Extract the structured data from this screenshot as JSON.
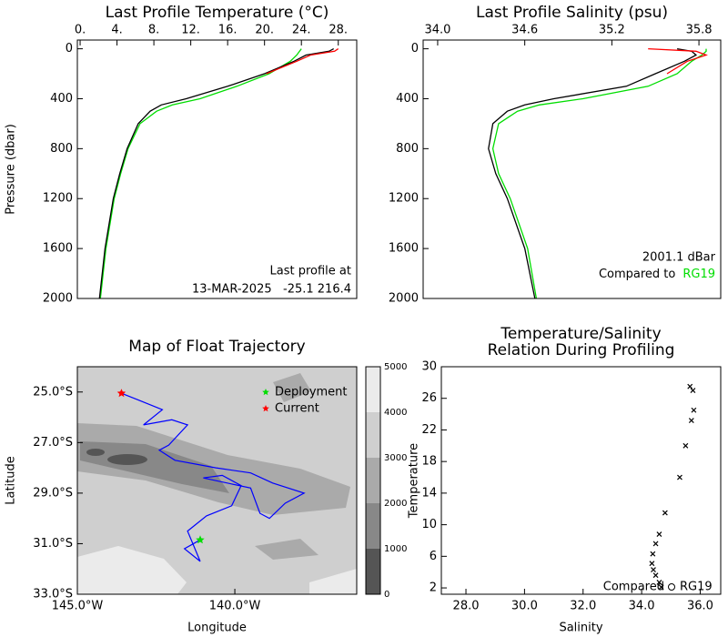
{
  "chart_data": [
    {
      "type": "profile",
      "title": "Last Profile Temperature (°C)",
      "y_label": "Pressure (dbar)",
      "xlim": [
        -0.3,
        30
      ],
      "xticks": [
        {
          "value": 0,
          "label": "0."
        },
        {
          "value": 4,
          "label": "4."
        },
        {
          "value": 8,
          "label": "8."
        },
        {
          "value": 12,
          "label": "12."
        },
        {
          "value": 16,
          "label": "16."
        },
        {
          "value": 20,
          "label": "20."
        },
        {
          "value": 24,
          "label": "24."
        },
        {
          "value": 28,
          "label": "28."
        }
      ],
      "ylim": [
        -70,
        2000
      ],
      "y_inverted": true,
      "yticks": [
        0,
        400,
        800,
        1200,
        1600,
        2000
      ],
      "y": [
        0,
        20,
        50,
        100,
        200,
        300,
        400,
        450,
        500,
        600,
        800,
        1000,
        1200,
        1600,
        2000
      ],
      "series": [
        {
          "color": "#00dd00",
          "values": [
            24.0,
            23.8,
            23.5,
            22.8,
            20.5,
            17.0,
            13.0,
            10.0,
            8.3,
            6.5,
            5.2,
            4.4,
            3.7,
            2.8,
            2.2
          ]
        },
        {
          "color": "#000000",
          "values": [
            27.5,
            27.0,
            24.5,
            23.2,
            20.0,
            16.0,
            11.5,
            8.8,
            7.6,
            6.3,
            5.1,
            4.3,
            3.6,
            2.7,
            2.1
          ]
        },
        {
          "color": "#ff0000",
          "values": [
            28.0,
            27.6,
            25.0,
            23.5,
            20.2,
            null,
            null,
            null,
            null,
            null,
            null,
            null,
            null,
            null,
            null
          ]
        }
      ],
      "annotations": [
        "Last profile at",
        "13-MAR-2025   -25.1 216.4"
      ]
    },
    {
      "type": "profile",
      "title": "Last Profile Salinity (psu)",
      "xlim": [
        33.9,
        35.95
      ],
      "xticks": [
        {
          "value": 34,
          "label": "34.0"
        },
        34.6,
        35.2,
        35.8
      ],
      "ylim": [
        -70,
        2000
      ],
      "y_inverted": true,
      "yticks": [
        0,
        400,
        800,
        1200,
        1600,
        2000
      ],
      "y": [
        0,
        20,
        50,
        100,
        200,
        300,
        400,
        450,
        500,
        600,
        800,
        1000,
        1200,
        1600,
        2000
      ],
      "series": [
        {
          "color": "#00dd00",
          "values": [
            35.85,
            35.85,
            35.82,
            35.75,
            35.65,
            35.45,
            35.0,
            34.7,
            34.55,
            34.42,
            34.38,
            34.42,
            34.5,
            34.62,
            34.68
          ]
        },
        {
          "color": "#000000",
          "values": [
            35.65,
            35.75,
            35.78,
            35.7,
            35.5,
            35.3,
            34.8,
            34.6,
            34.48,
            34.38,
            34.35,
            34.4,
            34.48,
            34.6,
            34.67
          ]
        },
        {
          "color": "#ff0000",
          "values": [
            35.45,
            35.78,
            35.85,
            35.72,
            35.58,
            null,
            null,
            null,
            null,
            null,
            null,
            null,
            null,
            null,
            null
          ]
        }
      ],
      "annotations": [
        "2001.1 dBar"
      ],
      "comparison": {
        "text": "Compared to",
        "label": "RG19",
        "color": "#00dd00"
      }
    },
    {
      "type": "map",
      "title": "Map of Float Trajectory",
      "x_label": "Longitude",
      "y_label": "Latitude",
      "xlim": [
        -145,
        -136.13
      ],
      "xticks": [
        {
          "value": -145,
          "label": "145.0°W"
        },
        {
          "value": -140,
          "label": "140.0°W"
        }
      ],
      "ylim": [
        -33,
        -24
      ],
      "yticks": [
        {
          "value": -25,
          "label": "25.0°S"
        },
        {
          "value": -27,
          "label": "27.0°S"
        },
        {
          "value": -29,
          "label": "29.0°S"
        },
        {
          "value": -31,
          "label": "31.0°S"
        },
        {
          "value": -33,
          "label": "33.0°S"
        }
      ],
      "series": [
        {
          "color": "#0000ff",
          "x": [
            -141.1,
            -141.6,
            -141.1,
            -141.5,
            -140.9,
            -140.1,
            -139.8,
            -140.4,
            -141.0,
            -139.5,
            -139.2,
            -138.9,
            -138.4,
            -137.8,
            -138.8,
            -139.5,
            -140.6,
            -141.9,
            -142.4,
            -142.1,
            -141.5,
            -142.0,
            -142.9,
            -142.3,
            -143.1,
            -143.6
          ],
          "values": [
            -30.85,
            -31.2,
            -31.7,
            -30.5,
            -29.9,
            -29.5,
            -28.7,
            -28.3,
            -28.4,
            -28.8,
            -29.8,
            -30.0,
            -29.4,
            -29.0,
            -28.6,
            -28.2,
            -28.0,
            -27.7,
            -27.3,
            -27.1,
            -26.3,
            -26.1,
            -26.3,
            -25.7,
            -25.3,
            -25.05
          ]
        }
      ],
      "markers": [
        {
          "name": "Deployment",
          "color": "#00dd00",
          "x": -141.1,
          "y": -30.85
        },
        {
          "name": "Current",
          "color": "#ff0000",
          "x": -143.6,
          "y": -25.05
        }
      ],
      "colorbar": {
        "ticks": [
          0,
          1000,
          2000,
          3000,
          4000,
          5000
        ],
        "colors": [
          "#555555",
          "#888888",
          "#aaaaaa",
          "#cfcfcf",
          "#ebebeb"
        ]
      }
    },
    {
      "type": "scatter",
      "title": [
        "Temperature/Salinity",
        "Relation During Profiling"
      ],
      "x_label": "Salinity",
      "y_label": "Temperature",
      "xlim": [
        27.16,
        36.7
      ],
      "xticks": [
        {
          "value": 28,
          "label": "28.0"
        },
        {
          "value": 30,
          "label": "30.0"
        },
        {
          "value": 32,
          "label": "32.0"
        },
        {
          "value": 34,
          "label": "34.0"
        },
        {
          "value": 36,
          "label": "36.0"
        }
      ],
      "ylim": [
        1.2,
        30
      ],
      "yticks": [
        2,
        6,
        10,
        14,
        18,
        22,
        26,
        30
      ],
      "series": [
        {
          "color": "#000000",
          "x": [
            35.65,
            35.75,
            35.78,
            35.7,
            35.5,
            35.3,
            34.8,
            34.6,
            34.48,
            34.38,
            34.35,
            34.4,
            34.48,
            34.6,
            34.67
          ],
          "values": [
            27.5,
            27.0,
            24.5,
            23.2,
            20.0,
            16.0,
            11.5,
            8.8,
            7.6,
            6.3,
            5.1,
            4.3,
            3.6,
            2.7,
            2.1
          ]
        }
      ],
      "comparison": {
        "text": "Compared",
        "label": "RG19",
        "color": "#00dd00"
      }
    }
  ]
}
